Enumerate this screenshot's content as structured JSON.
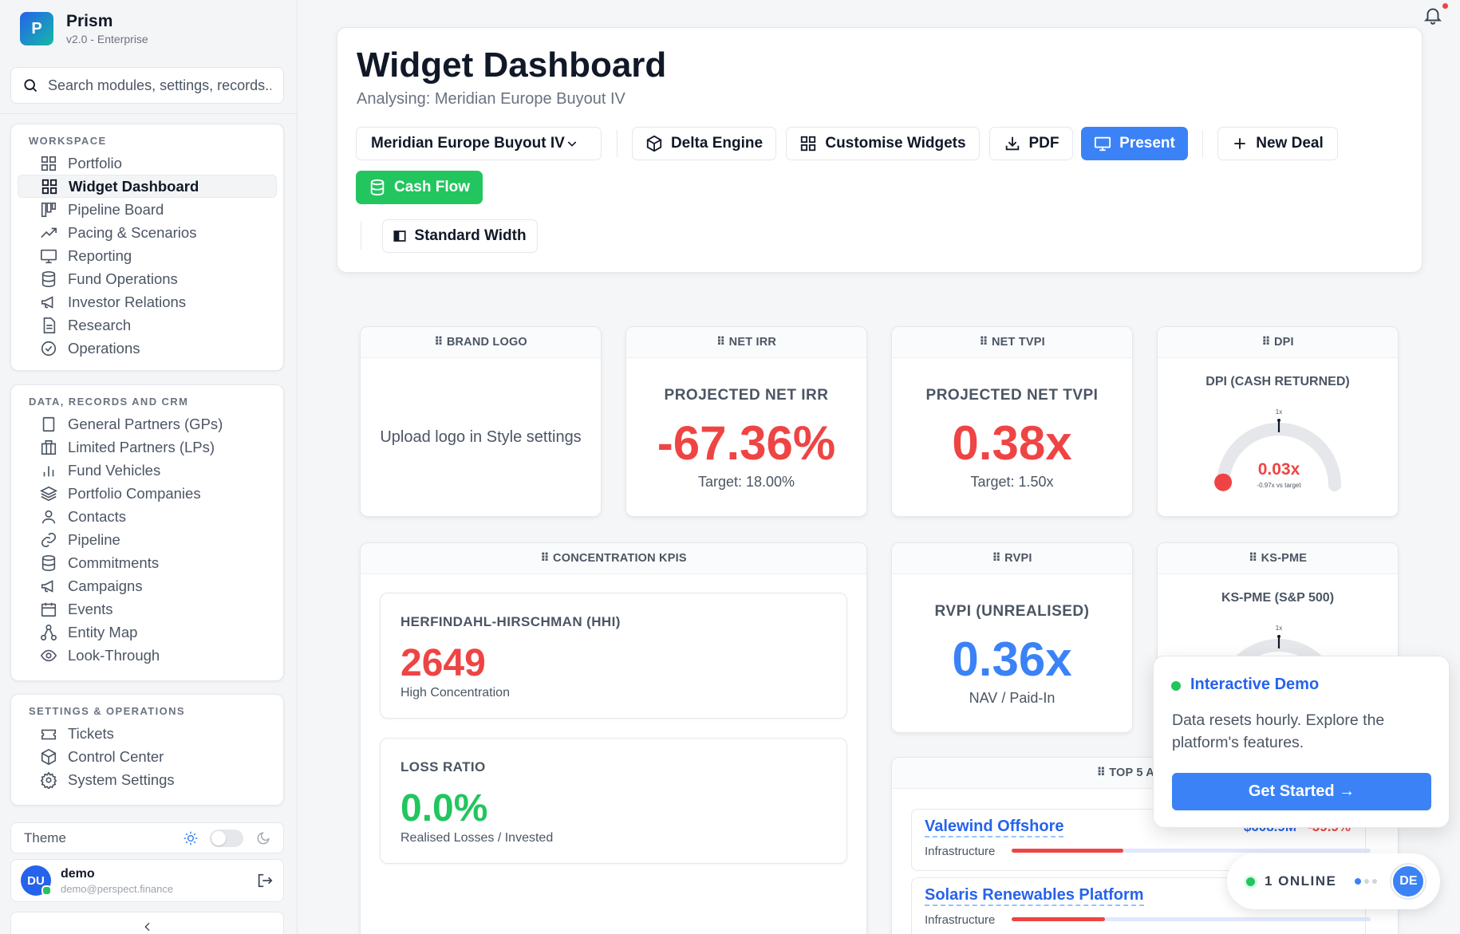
{
  "app": {
    "name": "Prism",
    "version": "v2.0 - Enterprise",
    "logo_letter": "P"
  },
  "search": {
    "placeholder": "Search modules, settings, records..."
  },
  "sidebar": {
    "workspace": {
      "title": "WORKSPACE",
      "items": [
        {
          "label": "Portfolio",
          "icon": "grid-icon"
        },
        {
          "label": "Widget Dashboard",
          "icon": "grid-icon",
          "active": true
        },
        {
          "label": "Pipeline Board",
          "icon": "kanban-icon"
        },
        {
          "label": "Pacing & Scenarios",
          "icon": "trend-icon"
        },
        {
          "label": "Reporting",
          "icon": "monitor-icon"
        },
        {
          "label": "Fund Operations",
          "icon": "database-icon"
        },
        {
          "label": "Investor Relations",
          "icon": "megaphone-icon"
        },
        {
          "label": "Research",
          "icon": "document-icon"
        },
        {
          "label": "Operations",
          "icon": "check-circle-icon"
        }
      ]
    },
    "data": {
      "title": "DATA, RECORDS AND CRM",
      "items": [
        {
          "label": "General Partners (GPs)",
          "icon": "square-icon"
        },
        {
          "label": "Limited Partners (LPs)",
          "icon": "building-icon"
        },
        {
          "label": "Fund Vehicles",
          "icon": "bar-chart-icon"
        },
        {
          "label": "Portfolio Companies",
          "icon": "layers-icon"
        },
        {
          "label": "Contacts",
          "icon": "user-icon"
        },
        {
          "label": "Pipeline",
          "icon": "link-icon"
        },
        {
          "label": "Commitments",
          "icon": "database-icon"
        },
        {
          "label": "Campaigns",
          "icon": "megaphone-icon"
        },
        {
          "label": "Events",
          "icon": "calendar-icon"
        },
        {
          "label": "Entity Map",
          "icon": "network-icon"
        },
        {
          "label": "Look-Through",
          "icon": "eye-icon"
        }
      ]
    },
    "settings": {
      "title": "SETTINGS & OPERATIONS",
      "items": [
        {
          "label": "Tickets",
          "icon": "ticket-icon"
        },
        {
          "label": "Control Center",
          "icon": "cube-icon"
        },
        {
          "label": "System Settings",
          "icon": "gear-icon"
        }
      ]
    },
    "theme_label": "Theme",
    "user": {
      "initials": "DU",
      "name": "demo",
      "email": "demo@perspect.finance"
    }
  },
  "header": {
    "title": "Widget Dashboard",
    "subtitle": "Analysing: Meridian Europe Buyout IV",
    "fund_select": "Meridian Europe Buyout IV",
    "buttons": {
      "delta": "Delta Engine",
      "customise": "Customise Widgets",
      "pdf": "PDF",
      "present": "Present",
      "new_deal": "New Deal",
      "cash_flow": "Cash Flow",
      "width": "Standard Width"
    }
  },
  "widgets": {
    "brand_logo": {
      "head": "⠿ BRAND LOGO",
      "text": "Upload logo in Style settings"
    },
    "net_irr": {
      "head": "⠿ NET IRR",
      "label": "PROJECTED NET IRR",
      "value": "-67.36%",
      "sub": "Target: 18.00%"
    },
    "net_tvpi": {
      "head": "⠿ NET TVPI",
      "label": "PROJECTED NET TVPI",
      "value": "0.38x",
      "sub": "Target: 1.50x"
    },
    "dpi": {
      "head": "⠿ DPI",
      "label": "DPI (CASH RETURNED)",
      "tick": "1x",
      "value": "0.03x",
      "sub": "-0.97x vs target",
      "level": 0.03
    },
    "concentration": {
      "head": "⠿ CONCENTRATION KPIS",
      "hhi": {
        "label": "HERFINDAHL-HIRSCHMAN (HHI)",
        "value": "2649",
        "sub": "High Concentration"
      },
      "loss": {
        "label": "LOSS RATIO",
        "value": "0.0%",
        "sub": "Realised Losses / Invested"
      }
    },
    "rvpi": {
      "head": "⠿ RVPI",
      "label": "RVPI (UNREALISED)",
      "value": "0.36x",
      "sub": "NAV / Paid-In"
    },
    "kspme": {
      "head": "⠿ KS-PME",
      "label": "KS-PME (S&P 500)",
      "tick": "1x"
    },
    "top_assets": {
      "head": "⠿ TOP 5 ASSETS",
      "rows": [
        {
          "name": "Valewind Offshore",
          "category": "Infrastructure",
          "value": "$608.9M",
          "change": "-39.9%",
          "fill": 0.31
        },
        {
          "name": "Solaris Renewables Platform",
          "category": "Infrastructure",
          "fill": 0.26
        }
      ]
    }
  },
  "popup": {
    "title": "Interactive Demo",
    "body": "Data resets hourly. Explore the platform's features.",
    "cta": "Get Started →"
  },
  "presence": {
    "label": "1 ONLINE",
    "initials": "DE"
  },
  "colors": {
    "primary": "#3b82f6",
    "success": "#22c55e",
    "danger": "#ef4444"
  }
}
